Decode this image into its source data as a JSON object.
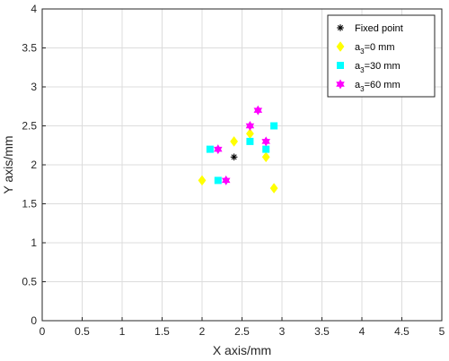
{
  "chart_data": {
    "type": "scatter",
    "xlabel": "X axis/mm",
    "ylabel": "Y axis/mm",
    "xlim": [
      0,
      5
    ],
    "ylim": [
      0,
      4
    ],
    "xticks": [
      0,
      0.5,
      1,
      1.5,
      2,
      2.5,
      3,
      3.5,
      4,
      4.5,
      5
    ],
    "yticks": [
      0,
      0.5,
      1,
      1.5,
      2,
      2.5,
      3,
      3.5,
      4
    ],
    "xtick_labels": [
      "0",
      "0.5",
      "1",
      "1.5",
      "2",
      "2.5",
      "3",
      "3.5",
      "4",
      "4.5",
      "5"
    ],
    "ytick_labels": [
      "0",
      "0.5",
      "1",
      "1.5",
      "2",
      "2.5",
      "3",
      "3.5",
      "4"
    ],
    "grid": true,
    "legend_position": "top-right",
    "series": [
      {
        "name": "Fixed point",
        "label_main": "Fixed point",
        "label_sub": "",
        "label_tail": "",
        "marker": "asterisk",
        "color": "#000000",
        "points": [
          [
            2.4,
            2.1
          ]
        ]
      },
      {
        "name": "a3=0 mm",
        "label_main": "a",
        "label_sub": "3",
        "label_tail": "=0 mm",
        "marker": "diamond",
        "color": "#FFFF00",
        "points": [
          [
            2.0,
            1.8
          ],
          [
            2.4,
            2.3
          ],
          [
            2.6,
            2.4
          ],
          [
            2.8,
            2.1
          ],
          [
            2.9,
            1.7
          ]
        ]
      },
      {
        "name": "a3=30 mm",
        "label_main": "a",
        "label_sub": "3",
        "label_tail": "=30 mm",
        "marker": "square",
        "color": "#00FFFF",
        "points": [
          [
            2.1,
            2.2
          ],
          [
            2.2,
            1.8
          ],
          [
            2.6,
            2.3
          ],
          [
            2.8,
            2.2
          ],
          [
            2.9,
            2.5
          ]
        ]
      },
      {
        "name": "a3=60 mm",
        "label_main": "a",
        "label_sub": "3",
        "label_tail": "=60 mm",
        "marker": "hexagram",
        "color": "#FF00FF",
        "points": [
          [
            2.2,
            2.2
          ],
          [
            2.3,
            1.8
          ],
          [
            2.6,
            2.5
          ],
          [
            2.7,
            2.7
          ],
          [
            2.8,
            2.3
          ]
        ]
      }
    ]
  }
}
